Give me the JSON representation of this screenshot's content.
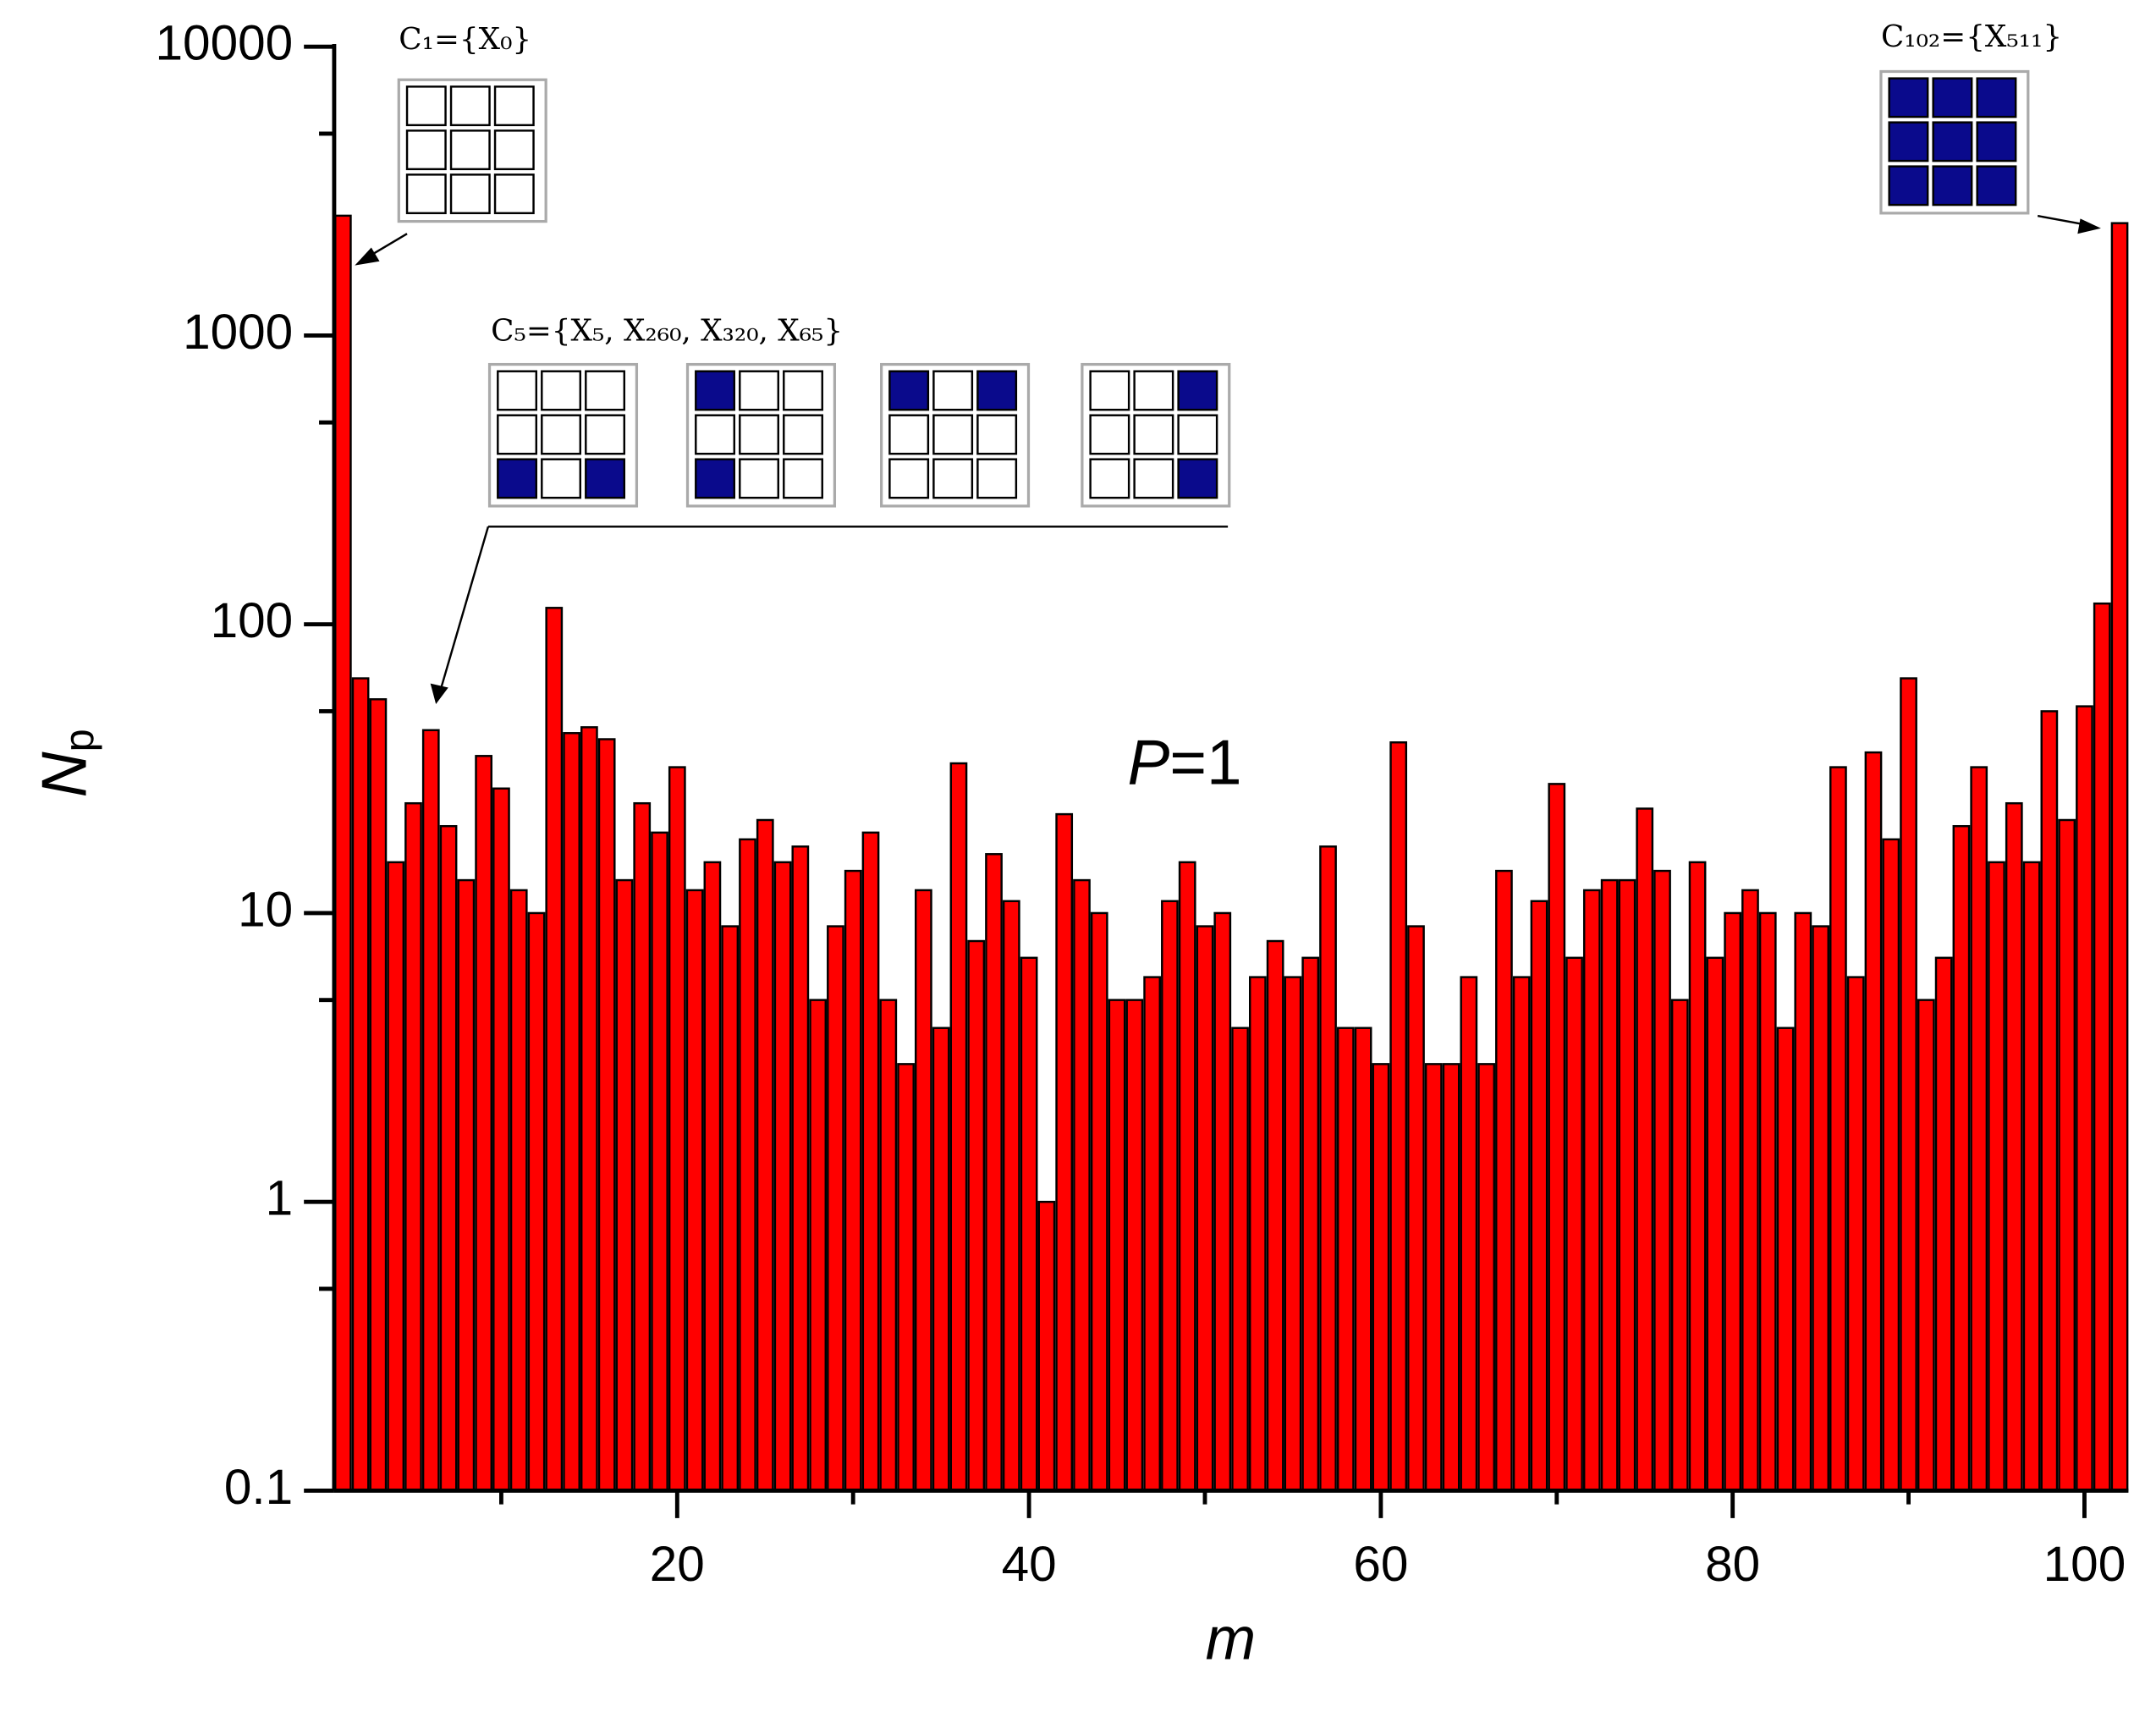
{
  "chart_data": {
    "type": "bar",
    "xlabel": "m",
    "ylabel": [
      "N",
      "p"
    ],
    "label_text": [
      "P",
      "=1"
    ],
    "annotations": [
      "C₁={X₀}",
      "C₅={X₅, X₂₆₀, X₃₂₀, X₆₅}",
      "C₁₀₂={X₅₁₁}"
    ],
    "x": [
      1,
      2,
      3,
      4,
      5,
      6,
      7,
      8,
      9,
      10,
      11,
      12,
      13,
      14,
      15,
      16,
      17,
      18,
      19,
      20,
      21,
      22,
      23,
      24,
      25,
      26,
      27,
      28,
      29,
      30,
      31,
      32,
      33,
      34,
      35,
      36,
      37,
      38,
      39,
      40,
      41,
      42,
      43,
      44,
      45,
      46,
      47,
      48,
      49,
      50,
      51,
      52,
      53,
      54,
      55,
      56,
      57,
      58,
      59,
      60,
      61,
      62,
      63,
      64,
      65,
      66,
      67,
      68,
      69,
      70,
      71,
      72,
      73,
      74,
      75,
      76,
      77,
      78,
      79,
      80,
      81,
      82,
      83,
      84,
      85,
      86,
      87,
      88,
      89,
      90,
      91,
      92,
      93,
      94,
      95,
      96,
      97,
      98,
      99,
      100,
      101,
      102
    ],
    "values": [
      2600,
      65,
      55,
      15,
      24,
      43,
      20,
      13,
      35,
      27,
      12,
      10,
      114,
      42,
      44,
      40,
      13,
      24,
      19,
      32,
      12,
      15,
      9,
      18,
      21,
      15,
      17,
      5,
      9,
      14,
      19,
      5,
      3,
      12,
      4,
      33,
      8,
      16,
      11,
      7,
      1,
      22,
      13,
      10,
      5,
      5,
      6,
      11,
      15,
      9,
      10,
      4,
      6,
      8,
      6,
      7,
      17,
      4,
      4,
      3,
      39,
      9,
      3,
      3,
      6,
      3,
      14,
      6,
      11,
      28,
      7,
      12,
      13,
      13,
      23,
      14,
      5,
      15,
      7,
      10,
      12,
      10,
      4,
      10,
      9,
      32,
      6,
      36,
      18,
      65,
      5,
      7,
      20,
      32,
      15,
      24,
      15,
      50,
      21,
      52,
      118,
      2450
    ],
    "color": "#ff0000",
    "edge_color": "#000000",
    "xlim": [
      0.5,
      102.5
    ],
    "xticks": [
      20,
      40,
      60,
      80,
      100
    ],
    "xminor_ticks": [
      10,
      30,
      50,
      70,
      90
    ],
    "ylim": [
      0.1,
      10000
    ],
    "yticks": [
      0.1,
      1,
      10,
      100,
      1000,
      10000
    ],
    "yminor_ticks": [
      0.5,
      5,
      50,
      500,
      5000
    ],
    "log_y": true
  }
}
